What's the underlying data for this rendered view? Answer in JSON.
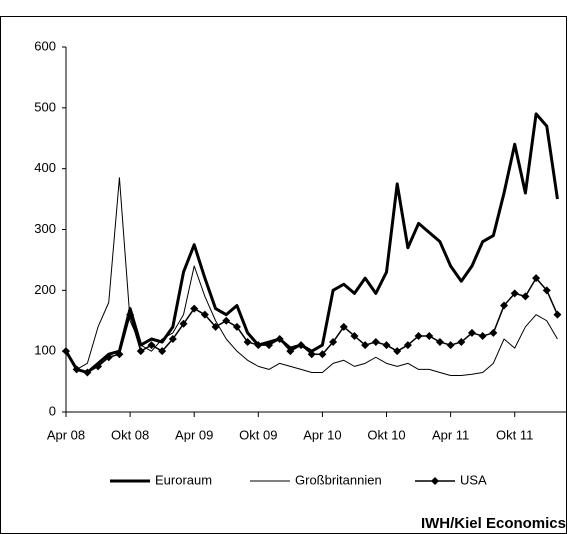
{
  "chart_data": {
    "type": "line",
    "source": "IWH/Kiel Economics",
    "x": [
      0,
      1,
      2,
      3,
      4,
      5,
      6,
      7,
      8,
      9,
      10,
      11,
      12,
      13,
      14,
      15,
      16,
      17,
      18,
      19,
      20,
      21,
      22,
      23,
      24,
      25,
      26,
      27,
      28,
      29,
      30,
      31,
      32,
      33,
      34,
      35,
      36,
      37,
      38,
      39,
      40,
      41,
      42,
      43,
      44,
      45,
      46
    ],
    "xlim": [
      0,
      46.8
    ],
    "xticks": [
      {
        "value": 0,
        "label": "Apr 08"
      },
      {
        "value": 6,
        "label": "Okt 08"
      },
      {
        "value": 12,
        "label": "Apr 09"
      },
      {
        "value": 18,
        "label": "Okt 09"
      },
      {
        "value": 24,
        "label": "Apr 10"
      },
      {
        "value": 30,
        "label": "Okt 10"
      },
      {
        "value": 36,
        "label": "Apr 11"
      },
      {
        "value": 42,
        "label": "Okt 11"
      }
    ],
    "ylim": [
      0,
      600
    ],
    "yticks": [
      0,
      100,
      200,
      300,
      400,
      500,
      600
    ],
    "grid": false,
    "legend": "bottom",
    "series": [
      {
        "name": "Euroraum",
        "color": "#000000",
        "width": 3,
        "marker": false,
        "values": [
          100,
          70,
          65,
          80,
          95,
          100,
          170,
          110,
          120,
          115,
          140,
          230,
          275,
          220,
          170,
          160,
          175,
          130,
          110,
          115,
          120,
          105,
          110,
          100,
          110,
          200,
          210,
          195,
          220,
          195,
          230,
          375,
          270,
          310,
          295,
          280,
          240,
          215,
          240,
          280,
          290,
          360,
          440,
          360,
          490,
          470,
          350
        ]
      },
      {
        "name": "Großbritannien",
        "color": "#000000",
        "width": 1,
        "marker": false,
        "values": [
          100,
          70,
          80,
          140,
          180,
          385,
          150,
          110,
          100,
          120,
          130,
          160,
          240,
          190,
          150,
          120,
          100,
          85,
          75,
          70,
          80,
          75,
          70,
          65,
          65,
          80,
          85,
          75,
          80,
          90,
          80,
          75,
          80,
          70,
          70,
          65,
          60,
          60,
          62,
          65,
          80,
          120,
          105,
          140,
          160,
          150,
          120
        ]
      },
      {
        "name": "USA",
        "color": "#000000",
        "width": 1.5,
        "marker": true,
        "values": [
          100,
          70,
          65,
          75,
          90,
          95,
          160,
          100,
          110,
          100,
          120,
          145,
          170,
          160,
          140,
          150,
          140,
          115,
          110,
          110,
          120,
          100,
          110,
          95,
          95,
          115,
          140,
          125,
          110,
          115,
          110,
          100,
          110,
          125,
          125,
          115,
          110,
          115,
          130,
          125,
          130,
          175,
          195,
          190,
          220,
          200,
          160
        ]
      }
    ]
  }
}
